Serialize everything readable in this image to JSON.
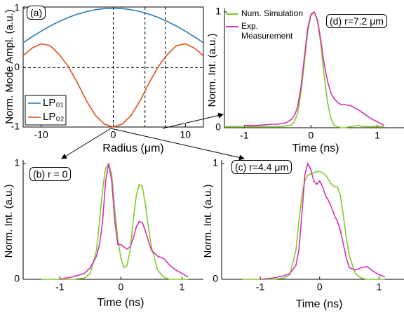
{
  "chart_data": [
    {
      "type": "line",
      "label": "(a)",
      "ylabel": "Norm. Mode Ampl. (a.u.)",
      "xlabel": "Radius (μm)",
      "x": [
        -12.5,
        -11.25,
        -10,
        -8.75,
        -7.5,
        -6.25,
        -5,
        -3.75,
        -2.5,
        -1.25,
        0,
        1.25,
        2.5,
        3.75,
        5,
        6.25,
        7.5,
        8.75,
        10,
        11.25,
        12.5
      ],
      "series": [
        {
          "name": "LP₀₁",
          "color": "#2a7ab8",
          "values": [
            0.419,
            0.52,
            0.614,
            0.7,
            0.776,
            0.843,
            0.898,
            0.942,
            0.974,
            0.994,
            1,
            0.994,
            0.974,
            0.942,
            0.898,
            0.843,
            0.776,
            0.7,
            0.614,
            0.52,
            0.419
          ]
        },
        {
          "name": "LP₀₂",
          "color": "#d9541a",
          "values": [
            0.2,
            0.33,
            0.4,
            0.37,
            0.22,
            0.02,
            -0.25,
            -0.55,
            -0.8,
            -0.95,
            -1,
            -0.95,
            -0.8,
            -0.55,
            -0.25,
            0.02,
            0.22,
            0.37,
            0.4,
            0.33,
            0.2
          ]
        }
      ],
      "xlim": [
        -12.5,
        12.5
      ],
      "ylim": [
        -1,
        1.02
      ],
      "xticks": [
        -10,
        0,
        10
      ],
      "yticks": [
        -1,
        0,
        1
      ],
      "vlines": [
        0,
        4.4,
        7.2
      ],
      "hlines": [
        0
      ]
    },
    {
      "type": "line",
      "label": "(d) r=7.2 μm",
      "ylabel": "Norm. Int. (a.u.)",
      "xlabel": "Time (ns)",
      "x": [
        -1.3,
        -1,
        -0.8,
        -0.6,
        -0.5,
        -0.4,
        -0.35,
        -0.3,
        -0.25,
        -0.2,
        -0.15,
        -0.1,
        -0.05,
        0,
        0.05,
        0.1,
        0.15,
        0.2,
        0.25,
        0.3,
        0.35,
        0.4,
        0.45,
        0.5,
        0.6,
        0.7,
        0.8,
        0.9,
        1.0,
        1.1
      ],
      "series": [
        {
          "name": "Num. Simulation",
          "color": "#80cc28",
          "values": [
            0.01,
            0.01,
            0.01,
            0.01,
            0.01,
            0.01,
            0.02,
            0.02,
            0.05,
            0.12,
            0.3,
            0.55,
            0.82,
            0.97,
            1.0,
            0.92,
            0.72,
            0.45,
            0.22,
            0.08,
            0.02,
            0.01,
            0,
            0,
            0.01,
            0.02,
            0.01,
            0.01,
            0.01,
            0.01
          ]
        },
        {
          "name": "Exp. Measurement",
          "color": "#d630b0",
          "values": [
            null,
            0.02,
            0.02,
            0.03,
            0.03,
            0.04,
            0.05,
            0.07,
            0.1,
            0.18,
            0.35,
            0.6,
            0.85,
            0.98,
            1.0,
            0.93,
            0.75,
            0.55,
            0.4,
            0.3,
            0.25,
            0.22,
            0.2,
            0.2,
            0.19,
            0.16,
            0.12,
            0.08,
            0.05,
            0.02
          ]
        }
      ],
      "xlim": [
        -1.3,
        1.4
      ],
      "ylim": [
        0,
        1.03
      ],
      "xticks": [
        -1,
        0,
        1
      ],
      "yticks": [
        0,
        1
      ]
    },
    {
      "type": "line",
      "label": "(b) r = 0",
      "ylabel": "Norm. Int. (a.u.)",
      "xlabel": "Time (ns)",
      "x": [
        -1.3,
        -1,
        -0.8,
        -0.6,
        -0.5,
        -0.4,
        -0.35,
        -0.3,
        -0.25,
        -0.2,
        -0.15,
        -0.1,
        -0.05,
        0,
        0.05,
        0.1,
        0.15,
        0.2,
        0.25,
        0.3,
        0.35,
        0.4,
        0.45,
        0.5,
        0.6,
        0.7,
        0.8,
        0.9,
        1.0,
        1.1
      ],
      "series": [
        {
          "color": "#80cc28",
          "values": [
            0,
            0,
            0,
            0.01,
            0.05,
            0.25,
            0.5,
            0.78,
            0.96,
            1.0,
            0.9,
            0.6,
            0.35,
            0.18,
            0.1,
            0.12,
            0.25,
            0.5,
            0.72,
            0.82,
            0.8,
            0.65,
            0.45,
            0.28,
            0.08,
            0.02,
            0,
            0,
            0,
            0
          ]
        },
        {
          "color": "#d630b0",
          "values": [
            null,
            0,
            0.02,
            0.05,
            0.1,
            0.2,
            0.3,
            0.5,
            0.85,
            1.0,
            0.85,
            0.5,
            0.3,
            0.3,
            0.28,
            0.26,
            0.28,
            0.35,
            0.45,
            0.5,
            0.49,
            0.42,
            0.33,
            0.25,
            0.2,
            0.18,
            0.12,
            0.08,
            0.05,
            0.02
          ]
        }
      ],
      "xlim": [
        -1.6,
        1.35
      ],
      "ylim": [
        0,
        1.03
      ],
      "xticks": [
        -1,
        0,
        1
      ],
      "yticks": [
        0,
        1
      ]
    },
    {
      "type": "line",
      "label": "(c) r=4.4 μm",
      "ylabel": "Norm. Int. (a.u.)",
      "xlabel": "Time (ns)",
      "x": [
        -1.3,
        -1,
        -0.8,
        -0.6,
        -0.5,
        -0.4,
        -0.35,
        -0.3,
        -0.25,
        -0.2,
        -0.15,
        -0.1,
        -0.05,
        0,
        0.05,
        0.1,
        0.15,
        0.2,
        0.25,
        0.3,
        0.35,
        0.4,
        0.45,
        0.5,
        0.6,
        0.7,
        0.8,
        0.9,
        1.0,
        1.1
      ],
      "series": [
        {
          "color": "#80cc28",
          "values": [
            0,
            0,
            0,
            0.01,
            0.04,
            0.25,
            0.5,
            0.72,
            0.85,
            0.9,
            0.91,
            0.92,
            0.93,
            0.93,
            0.92,
            0.9,
            0.86,
            0.82,
            0.8,
            0.8,
            0.72,
            0.55,
            0.35,
            0.2,
            0.05,
            0.01,
            0,
            0,
            0,
            0
          ]
        },
        {
          "color": "#d630b0",
          "values": [
            null,
            0,
            0.01,
            0.03,
            0.05,
            0.12,
            0.25,
            0.55,
            0.9,
            1.0,
            0.95,
            0.85,
            0.82,
            0.85,
            0.8,
            0.72,
            0.68,
            0.62,
            0.55,
            0.5,
            0.42,
            0.3,
            0.18,
            0.1,
            0.08,
            0.1,
            0.11,
            0.07,
            0.04,
            0.02
          ]
        }
      ],
      "xlim": [
        -1.65,
        1.42
      ],
      "ylim": [
        0,
        1.03
      ],
      "xticks": [
        -1,
        0,
        1
      ],
      "yticks": [
        0,
        1
      ]
    }
  ]
}
